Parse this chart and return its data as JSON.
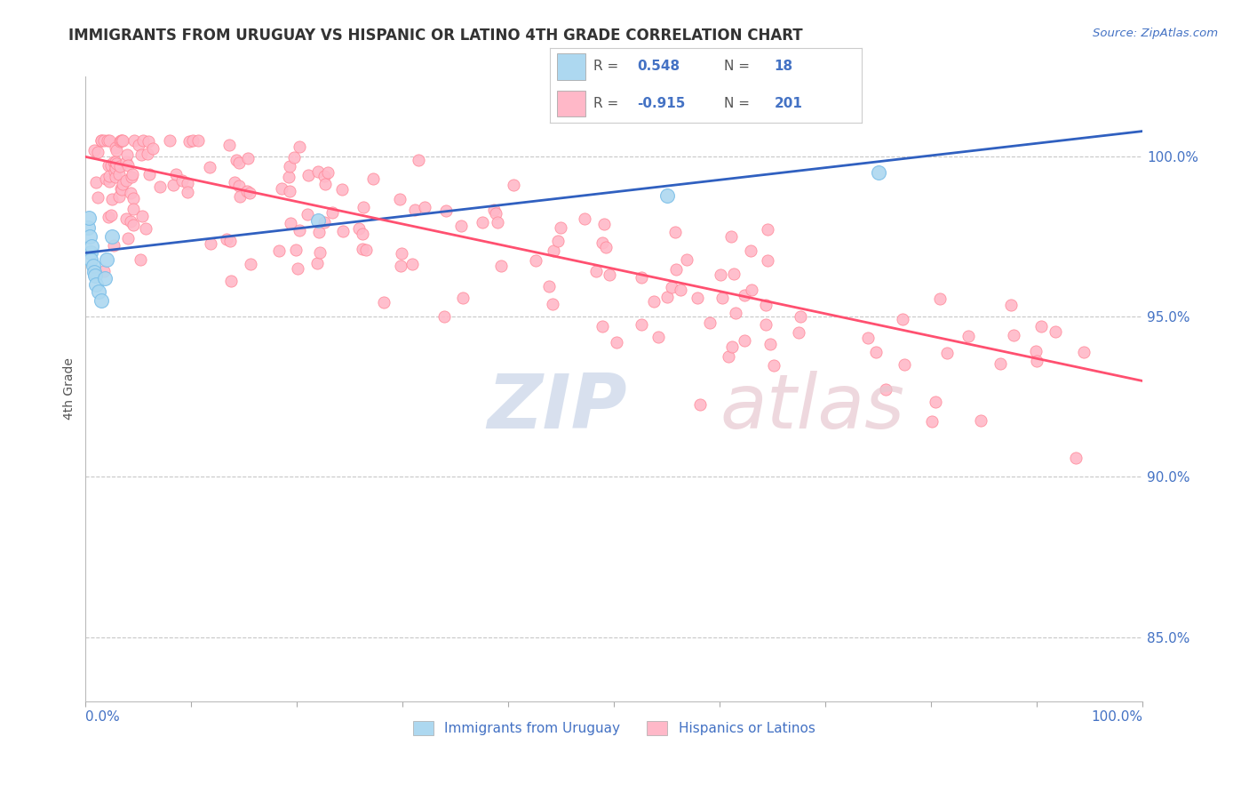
{
  "title": "IMMIGRANTS FROM URUGUAY VS HISPANIC OR LATINO 4TH GRADE CORRELATION CHART",
  "source": "Source: ZipAtlas.com",
  "ylabel": "4th Grade",
  "y_tick_labels": [
    "85.0%",
    "90.0%",
    "95.0%",
    "100.0%"
  ],
  "y_tick_values": [
    0.85,
    0.9,
    0.95,
    1.0
  ],
  "x_tick_values": [
    0.0,
    0.1,
    0.2,
    0.3,
    0.4,
    0.5,
    0.6,
    0.7,
    0.8,
    0.9,
    1.0
  ],
  "xlim": [
    0.0,
    1.0
  ],
  "ylim": [
    0.83,
    1.025
  ],
  "bg_color": "#FFFFFF",
  "title_color": "#333333",
  "axis_label_color": "#555555",
  "tick_label_color": "#4472C4",
  "grid_color": "#C8C8C8",
  "blue_dot_color": "#ADD8F0",
  "blue_dot_edge": "#7BBEE8",
  "pink_dot_color": "#FFB8C8",
  "pink_dot_edge": "#FF8898",
  "blue_line_color": "#3060C0",
  "pink_line_color": "#FF5070",
  "legend_color": "#4472C4",
  "blue_line_start": 0.97,
  "blue_line_end": 1.008,
  "pink_line_start": 1.0,
  "pink_line_end": 0.93,
  "watermark_zip_color": "#C8D4E8",
  "watermark_atlas_color": "#E8C8D0"
}
